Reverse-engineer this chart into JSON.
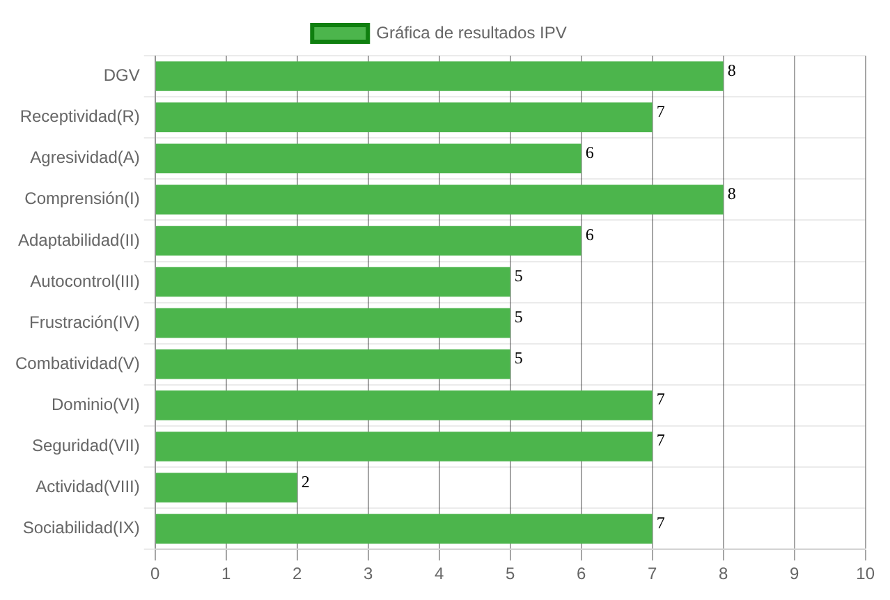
{
  "chart_data": {
    "type": "bar",
    "orientation": "horizontal",
    "categories": [
      "DGV",
      "Receptividad(R)",
      "Agresividad(A)",
      "Comprensión(I)",
      "Adaptabilidad(II)",
      "Autocontrol(III)",
      "Frustración(IV)",
      "Combatividad(V)",
      "Dominio(VI)",
      "Seguridad(VII)",
      "Actividad(VIII)",
      "Sociabilidad(IX)"
    ],
    "series": [
      {
        "name": "Gráfica de resultados IPV",
        "color": "#4cb54c",
        "values": [
          8,
          7,
          6,
          8,
          6,
          5,
          5,
          5,
          7,
          7,
          2,
          7
        ]
      }
    ],
    "xlim": [
      0,
      10
    ],
    "xticks": [
      0,
      1,
      2,
      3,
      4,
      5,
      6,
      7,
      8,
      9,
      10
    ],
    "grid": true,
    "legend": "top",
    "data_labels": true
  }
}
